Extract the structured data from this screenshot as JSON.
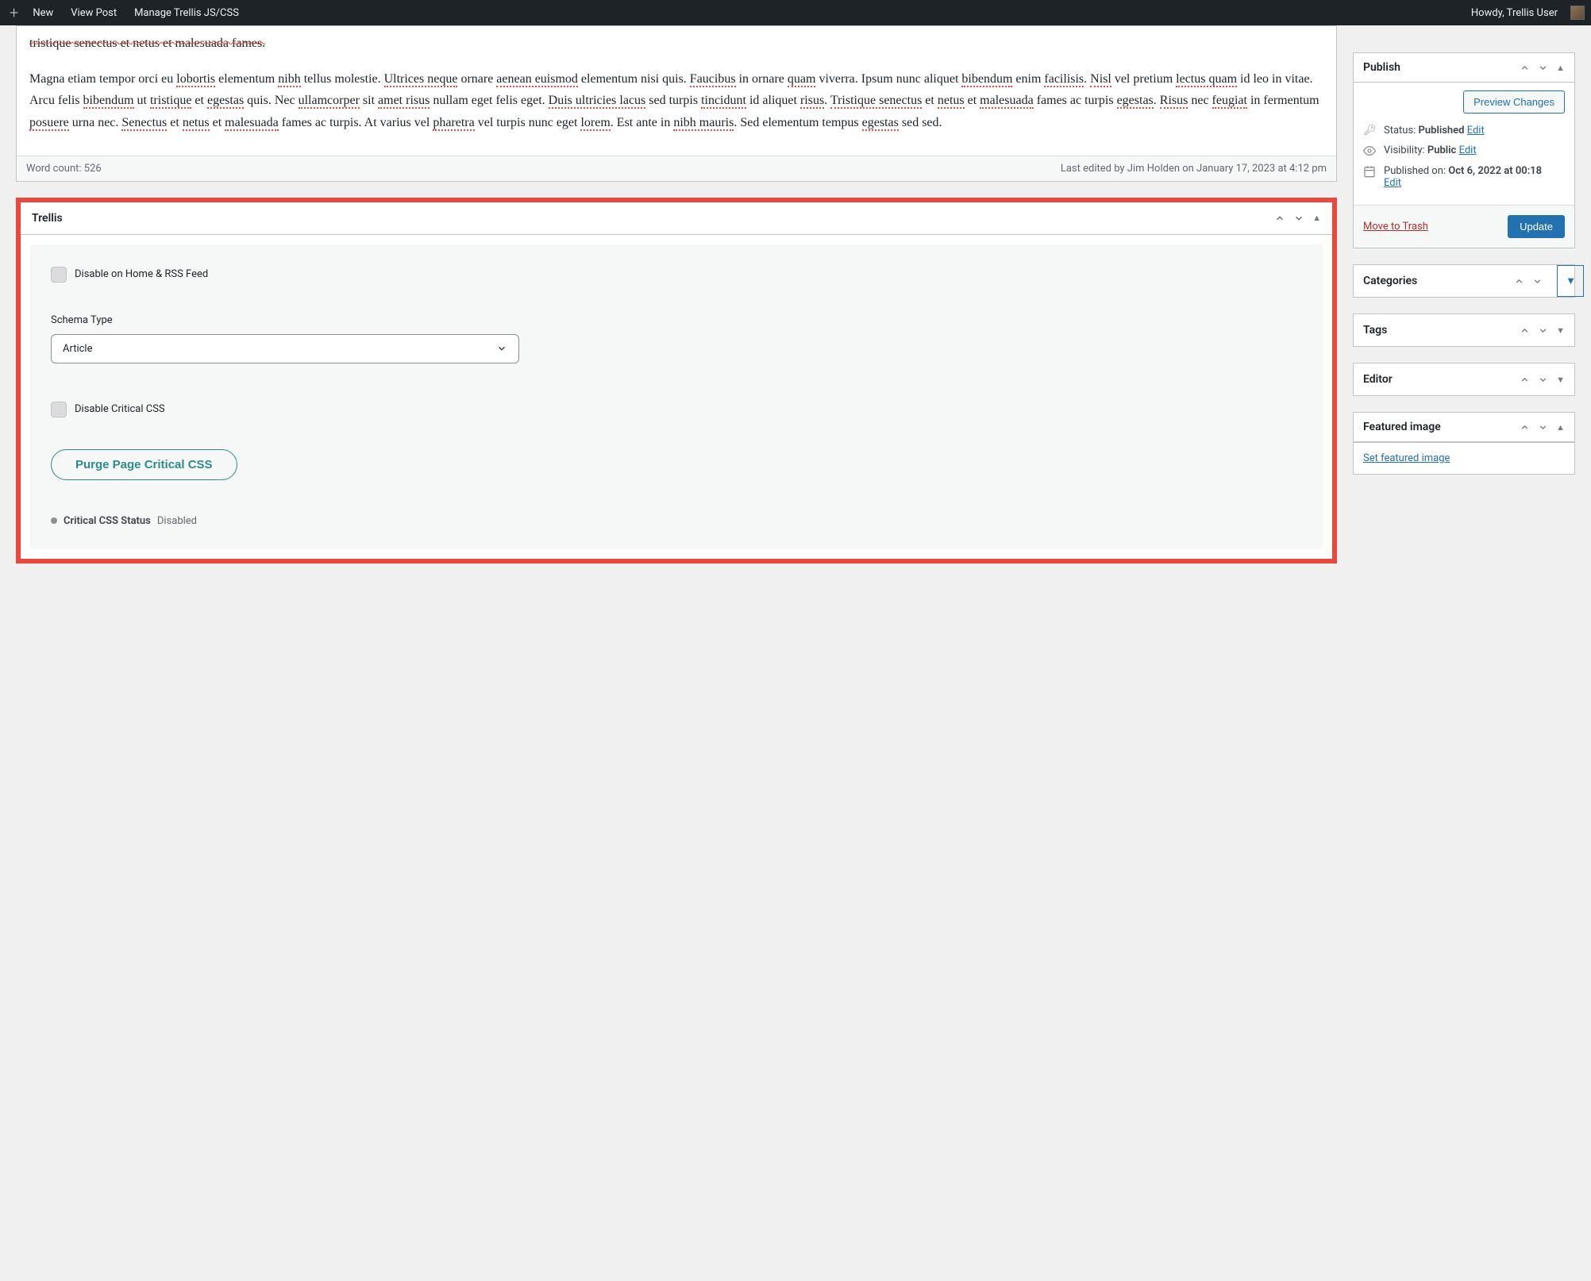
{
  "admin_bar": {
    "new": "New",
    "view_post": "View Post",
    "manage": "Manage Trellis JS/CSS",
    "howdy": "Howdy, Trellis User"
  },
  "editor": {
    "cut_line": "tristique senectus et netus et malesuada fames.",
    "para2_html": "Magna etiam tempor orci eu <span class='spell'>lobortis</span> elementum <span class='spell'>nibh</span> tellus molestie. <span class='spell'>Ultrices neque</span> ornare <span class='spell'>aenean euismod</span> elementum nisi quis. <span class='spell'>Faucibus</span> in ornare <span class='spell'>quam</span> viverra. Ipsum nunc aliquet <span class='spell'>bibendum</span> enim <span class='spell'>facilisis</span>. <span class='spell'>Nisl</span> vel pretium <span class='spell'>lectus quam</span> id leo in vitae. Arcu felis <span class='spell'>bibendum</span> ut <span class='spell'>tristique</span> et <span class='spell'>egestas</span> quis. Nec <span class='spell'>ullamcorper</span> sit <span class='spell'>amet risus</span> nullam eget felis eget. <span class='spell'>Duis ultricies lacus</span> sed turpis <span class='spell'>tincidunt</span> id aliquet <span class='spell'>risus</span>. <span class='spell'>Tristique senectus</span> et <span class='spell'>netus</span> et <span class='spell'>malesuada</span> fames ac turpis <span class='spell'>egestas</span>. <span class='spell'>Risus</span> nec <span class='spell'>feugiat</span> in fermentum <span class='spell'>posuere</span> urna nec. <span class='spell'>Senectus</span> et <span class='spell'>netus</span> et <span class='spell'>malesuada</span> fames ac turpis. At varius vel <span class='spell'>pharetra</span> vel turpis nunc eget <span class='spell'>lorem</span>. Est ante in <span class='spell'>nibh mauris</span>. Sed elementum tempus <span class='spell'>egestas</span> sed sed.",
    "word_count": "Word count: 526",
    "last_edited": "Last edited by Jim Holden on January 17, 2023 at 4:12 pm"
  },
  "trellis": {
    "title": "Trellis",
    "disable_home": "Disable on Home & RSS Feed",
    "schema_label": "Schema Type",
    "schema_value": "Article",
    "disable_ccss": "Disable Critical CSS",
    "purge_btn": "Purge Page Critical CSS",
    "status_label": "Critical CSS Status",
    "status_value": "Disabled"
  },
  "publish": {
    "title": "Publish",
    "preview": "Preview Changes",
    "status_label": "Status: ",
    "status_value": "Published",
    "edit": "Edit",
    "visibility_label": "Visibility: ",
    "visibility_value": "Public",
    "published_on_label": "Published on: ",
    "published_on_value": "Oct 6, 2022 at 00:18",
    "trash": "Move to Trash",
    "update": "Update"
  },
  "side_panels": {
    "categories": "Categories",
    "tags": "Tags",
    "editor": "Editor",
    "featured": "Featured image",
    "set_featured": "Set featured image"
  },
  "colors": {
    "highlight_border": "#e8483e",
    "link": "#2271b1",
    "primary_bg": "#2271b1",
    "teal": "#2e8b8b",
    "trash": "#b32d2e"
  }
}
